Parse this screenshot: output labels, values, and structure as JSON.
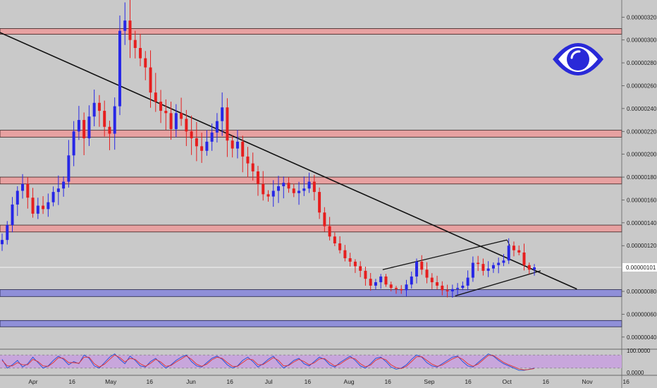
{
  "chart_data": [
    {
      "type": "candlestick",
      "title": "",
      "xlabel": "",
      "ylabel": "",
      "price_axis_ticks": [
        "0.00000320",
        "0.00000300",
        "0.00000280",
        "0.00000260",
        "0.00000240",
        "0.00000220",
        "0.00000200",
        "0.00000180",
        "0.00000160",
        "0.00000140",
        "0.00000120",
        "0.00000080",
        "0.00000060",
        "0.00000040"
      ],
      "current_price_label": "0.00000101",
      "current_price": 1.01e-06,
      "time_axis_ticks": [
        "Apr",
        "16",
        "May",
        "16",
        "Jun",
        "16",
        "Jul",
        "16",
        "Aug",
        "16",
        "Sep",
        "16",
        "Oct",
        "16",
        "Nov",
        "16"
      ],
      "ylim": [
        3e-07,
        3.35e-06
      ],
      "candle_colors": {
        "up": "#2727e6",
        "down": "#e61e1e"
      },
      "resistance_zones": [
        [
          3.05e-06,
          3.1e-06
        ],
        [
          2.15e-06,
          2.21e-06
        ],
        [
          1.74e-06,
          1.8e-06
        ],
        [
          1.32e-06,
          1.38e-06
        ]
      ],
      "support_zones": [
        [
          7.55e-07,
          8.15e-07
        ],
        [
          4.9e-07,
          5.45e-07
        ]
      ],
      "trendline": {
        "from": [
          "2020-02-10",
          3.45e-06
        ],
        "to": [
          "2020-10-28",
          8.2e-07
        ]
      },
      "channel": {
        "upper": [
          [
            "2020-08-14",
            9.9e-07
          ],
          [
            "2020-10-01",
            1.25e-06
          ]
        ],
        "lower": [
          [
            "2020-09-11",
            7.6e-07
          ],
          [
            "2020-10-14",
            9.8e-07
          ]
        ]
      },
      "closes": [
        1.25,
        1.38,
        1.56,
        1.68,
        1.74,
        1.62,
        1.48,
        1.55,
        1.52,
        1.58,
        1.67,
        1.7,
        1.76,
        1.99,
        2.2,
        2.3,
        2.14,
        2.33,
        2.45,
        2.38,
        2.24,
        2.18,
        2.42,
        3.08,
        3.17,
        3.0,
        2.93,
        2.84,
        2.76,
        2.54,
        2.46,
        2.38,
        2.36,
        2.22,
        2.36,
        2.31,
        2.2,
        2.14,
        2.07,
        2.03,
        2.11,
        2.19,
        2.29,
        2.41,
        2.12,
        2.05,
        2.11,
        1.98,
        1.92,
        1.85,
        1.74,
        1.65,
        1.63,
        1.68,
        1.72,
        1.75,
        1.7,
        1.66,
        1.68,
        1.7,
        1.76,
        1.67,
        1.49,
        1.37,
        1.28,
        1.22,
        1.16,
        1.09,
        1.06,
        1.02,
        0.98,
        0.91,
        0.85,
        0.88,
        0.93,
        0.86,
        0.83,
        0.82,
        0.81,
        0.86,
        0.93,
        1.06,
        0.99,
        0.92,
        0.88,
        0.85,
        0.81,
        0.8,
        0.82,
        0.83,
        0.85,
        0.92,
        1.05,
        1.04,
        0.98,
        1.0,
        1.03,
        1.05,
        1.07,
        1.2,
        1.16,
        1.14,
        1.03,
        0.99,
        1.01
      ]
    },
    {
      "type": "line",
      "title": "",
      "indicator_ticks": [
        "100.0000",
        "0.0000"
      ],
      "ylim": [
        0,
        100
      ],
      "band": [
        20,
        80
      ],
      "series": [
        {
          "color": "#1f4fd9",
          "values": [
            60,
            20,
            35,
            55,
            25,
            40,
            70,
            45,
            20,
            30,
            55,
            75,
            60,
            35,
            50,
            40,
            80,
            65,
            30,
            20,
            45,
            70,
            85,
            60,
            40,
            75,
            55,
            30,
            25,
            50,
            65,
            40,
            20,
            35,
            55,
            70,
            80,
            50,
            30,
            25,
            45,
            65,
            75,
            60,
            35,
            20,
            30,
            55,
            70,
            50,
            25,
            40,
            60,
            75,
            45,
            20,
            35,
            55,
            65,
            40,
            30,
            50,
            70,
            60,
            35,
            25,
            45,
            60,
            75,
            55,
            30,
            20,
            40,
            65,
            70,
            50,
            25,
            15,
            20,
            35,
            60,
            80,
            70,
            45,
            30,
            25,
            40,
            55,
            70,
            75,
            50,
            30,
            25,
            45,
            65,
            85,
            75,
            55,
            40,
            30,
            20,
            10,
            10,
            15,
            20
          ]
        },
        {
          "color": "#e23030",
          "values": [
            55,
            30,
            30,
            45,
            35,
            35,
            60,
            50,
            30,
            28,
            45,
            68,
            65,
            45,
            45,
            42,
            70,
            70,
            40,
            25,
            38,
            60,
            80,
            68,
            48,
            65,
            60,
            40,
            28,
            42,
            60,
            48,
            28,
            32,
            48,
            62,
            76,
            60,
            38,
            28,
            38,
            58,
            70,
            65,
            45,
            28,
            28,
            45,
            62,
            58,
            35,
            36,
            52,
            68,
            55,
            30,
            32,
            48,
            60,
            50,
            35,
            44,
            62,
            64,
            45,
            30,
            38,
            54,
            68,
            62,
            40,
            26,
            34,
            56,
            66,
            58,
            35,
            22,
            18,
            28,
            50,
            72,
            72,
            55,
            38,
            28,
            34,
            48,
            62,
            72,
            60,
            40,
            28,
            38,
            58,
            78,
            78,
            62,
            46,
            35,
            26,
            16,
            12,
            14,
            18
          ]
        }
      ]
    }
  ],
  "colors": {
    "background": "#c9c9c9",
    "resistance": "#e7a1a1",
    "support": "#8f8fd8",
    "indicator_band": "#c8a6dc",
    "eye_logo": "#2929d8"
  },
  "logo": {
    "icon": "eye-icon"
  }
}
